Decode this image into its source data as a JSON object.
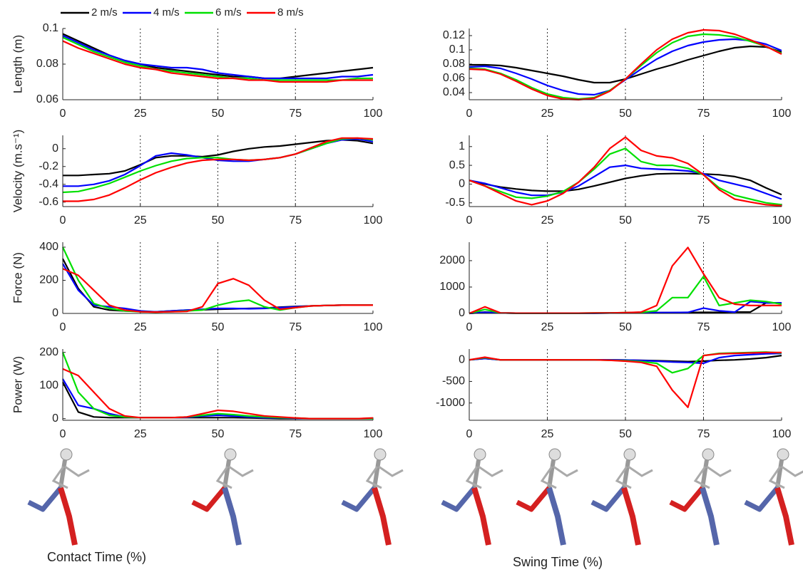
{
  "chart_data": [
    {
      "type": "line",
      "ylabel": "Length (m)",
      "x": [
        0,
        5,
        10,
        15,
        20,
        25,
        30,
        35,
        40,
        45,
        50,
        55,
        60,
        65,
        70,
        75,
        80,
        85,
        90,
        95,
        100
      ],
      "xlim": [
        0,
        100
      ],
      "xticks": [
        0,
        25,
        50,
        75,
        100
      ],
      "ylim": [
        0.06,
        0.1
      ],
      "yticks": [
        0.06,
        0.08,
        0.1
      ],
      "xgrid": true,
      "series": [
        {
          "name": "2 m/s",
          "color": "#000000",
          "values": [
            0.097,
            0.093,
            0.089,
            0.085,
            0.082,
            0.08,
            0.078,
            0.077,
            0.076,
            0.075,
            0.074,
            0.073,
            0.073,
            0.072,
            0.072,
            0.073,
            0.074,
            0.075,
            0.076,
            0.077,
            0.078
          ]
        },
        {
          "name": "4 m/s",
          "color": "#0000ff",
          "values": [
            0.096,
            0.092,
            0.088,
            0.085,
            0.082,
            0.08,
            0.079,
            0.078,
            0.078,
            0.077,
            0.075,
            0.074,
            0.073,
            0.072,
            0.072,
            0.072,
            0.072,
            0.072,
            0.073,
            0.073,
            0.074
          ]
        },
        {
          "name": "6 m/s",
          "color": "#00e000",
          "values": [
            0.095,
            0.091,
            0.087,
            0.084,
            0.081,
            0.079,
            0.077,
            0.076,
            0.075,
            0.074,
            0.073,
            0.072,
            0.072,
            0.071,
            0.071,
            0.071,
            0.071,
            0.071,
            0.071,
            0.072,
            0.072
          ]
        },
        {
          "name": "8 m/s",
          "color": "#ff0000",
          "values": [
            0.093,
            0.089,
            0.086,
            0.083,
            0.08,
            0.078,
            0.077,
            0.075,
            0.074,
            0.073,
            0.072,
            0.072,
            0.071,
            0.071,
            0.07,
            0.07,
            0.07,
            0.07,
            0.071,
            0.071,
            0.071
          ]
        }
      ]
    },
    {
      "type": "line",
      "x": [
        0,
        5,
        10,
        15,
        20,
        25,
        30,
        35,
        40,
        45,
        50,
        55,
        60,
        65,
        70,
        75,
        80,
        85,
        90,
        95,
        100
      ],
      "xlim": [
        0,
        100
      ],
      "xticks": [
        0,
        25,
        50,
        75,
        100
      ],
      "ylim": [
        0.03,
        0.13
      ],
      "yticks": [
        0.04,
        0.06,
        0.08,
        0.1,
        0.12
      ],
      "xgrid": true,
      "series": [
        {
          "color": "#000000",
          "values": [
            0.079,
            0.079,
            0.078,
            0.075,
            0.071,
            0.067,
            0.063,
            0.058,
            0.054,
            0.054,
            0.059,
            0.066,
            0.073,
            0.079,
            0.086,
            0.092,
            0.098,
            0.103,
            0.105,
            0.104,
            0.097
          ]
        },
        {
          "color": "#0000ff",
          "values": [
            0.076,
            0.077,
            0.074,
            0.067,
            0.059,
            0.05,
            0.043,
            0.038,
            0.037,
            0.043,
            0.058,
            0.073,
            0.087,
            0.098,
            0.106,
            0.111,
            0.114,
            0.115,
            0.113,
            0.108,
            0.099
          ]
        },
        {
          "color": "#00e000",
          "values": [
            0.074,
            0.073,
            0.067,
            0.058,
            0.047,
            0.038,
            0.033,
            0.031,
            0.033,
            0.043,
            0.059,
            0.078,
            0.096,
            0.11,
            0.119,
            0.122,
            0.121,
            0.118,
            0.112,
            0.105,
            0.095
          ]
        },
        {
          "color": "#ff0000",
          "values": [
            0.073,
            0.072,
            0.066,
            0.056,
            0.045,
            0.036,
            0.031,
            0.03,
            0.032,
            0.042,
            0.059,
            0.08,
            0.1,
            0.115,
            0.124,
            0.128,
            0.127,
            0.122,
            0.114,
            0.105,
            0.094
          ]
        }
      ]
    },
    {
      "type": "line",
      "ylabel": "Velocity (m.s⁻¹)",
      "x": [
        0,
        5,
        10,
        15,
        20,
        25,
        30,
        35,
        40,
        45,
        50,
        55,
        60,
        65,
        70,
        75,
        80,
        85,
        90,
        95,
        100
      ],
      "xlim": [
        0,
        100
      ],
      "xticks": [
        0,
        25,
        50,
        75,
        100
      ],
      "ylim": [
        -0.65,
        0.15
      ],
      "yticks": [
        -0.6,
        -0.4,
        -0.2,
        0
      ],
      "xgrid": true,
      "series": [
        {
          "color": "#000000",
          "values": [
            -0.3,
            -0.3,
            -0.29,
            -0.28,
            -0.25,
            -0.18,
            -0.1,
            -0.08,
            -0.08,
            -0.09,
            -0.07,
            -0.03,
            0.0,
            0.02,
            0.03,
            0.05,
            0.07,
            0.09,
            0.1,
            0.09,
            0.06
          ]
        },
        {
          "color": "#0000ff",
          "values": [
            -0.42,
            -0.42,
            -0.4,
            -0.36,
            -0.29,
            -0.19,
            -0.08,
            -0.05,
            -0.07,
            -0.1,
            -0.13,
            -0.14,
            -0.14,
            -0.12,
            -0.1,
            -0.06,
            0.0,
            0.06,
            0.1,
            0.11,
            0.08
          ]
        },
        {
          "color": "#00e000",
          "values": [
            -0.49,
            -0.48,
            -0.44,
            -0.39,
            -0.32,
            -0.25,
            -0.19,
            -0.14,
            -0.11,
            -0.1,
            -0.1,
            -0.12,
            -0.13,
            -0.12,
            -0.1,
            -0.06,
            0.0,
            0.06,
            0.11,
            0.12,
            0.1
          ]
        },
        {
          "color": "#ff0000",
          "values": [
            -0.59,
            -0.59,
            -0.57,
            -0.52,
            -0.44,
            -0.35,
            -0.27,
            -0.21,
            -0.16,
            -0.13,
            -0.12,
            -0.12,
            -0.13,
            -0.12,
            -0.1,
            -0.06,
            0.01,
            0.08,
            0.12,
            0.12,
            0.11
          ]
        }
      ]
    },
    {
      "type": "line",
      "x": [
        0,
        5,
        10,
        15,
        20,
        25,
        30,
        35,
        40,
        45,
        50,
        55,
        60,
        65,
        70,
        75,
        80,
        85,
        90,
        95,
        100
      ],
      "xlim": [
        0,
        100
      ],
      "xticks": [
        0,
        25,
        50,
        75,
        100
      ],
      "ylim": [
        -0.6,
        1.3
      ],
      "yticks": [
        -0.5,
        0,
        0.5,
        1
      ],
      "xgrid": true,
      "series": [
        {
          "color": "#000000",
          "values": [
            0.1,
            0.0,
            -0.08,
            -0.13,
            -0.17,
            -0.19,
            -0.19,
            -0.14,
            -0.05,
            0.05,
            0.15,
            0.22,
            0.27,
            0.28,
            0.28,
            0.27,
            0.25,
            0.2,
            0.1,
            -0.1,
            -0.28
          ]
        },
        {
          "color": "#0000ff",
          "values": [
            0.1,
            0.02,
            -0.1,
            -0.22,
            -0.3,
            -0.3,
            -0.22,
            -0.05,
            0.2,
            0.45,
            0.5,
            0.42,
            0.4,
            0.38,
            0.35,
            0.28,
            0.1,
            0.0,
            -0.1,
            -0.25,
            -0.4
          ]
        },
        {
          "color": "#00e000",
          "values": [
            0.1,
            -0.05,
            -0.2,
            -0.35,
            -0.38,
            -0.32,
            -0.2,
            0.05,
            0.4,
            0.8,
            0.95,
            0.6,
            0.5,
            0.5,
            0.42,
            0.25,
            -0.1,
            -0.3,
            -0.4,
            -0.5,
            -0.55
          ]
        },
        {
          "color": "#ff0000",
          "values": [
            0.1,
            -0.05,
            -0.25,
            -0.45,
            -0.55,
            -0.45,
            -0.25,
            0.05,
            0.45,
            0.95,
            1.25,
            0.9,
            0.75,
            0.7,
            0.55,
            0.25,
            -0.15,
            -0.4,
            -0.48,
            -0.55,
            -0.58
          ]
        }
      ]
    },
    {
      "type": "line",
      "ylabel": "Force (N)",
      "x": [
        0,
        5,
        10,
        15,
        20,
        25,
        30,
        35,
        40,
        45,
        50,
        55,
        60,
        65,
        70,
        75,
        80,
        85,
        90,
        95,
        100
      ],
      "xlim": [
        0,
        100
      ],
      "xticks": [
        0,
        25,
        50,
        75,
        100
      ],
      "ylim": [
        0,
        430
      ],
      "yticks": [
        0,
        200,
        400
      ],
      "xgrid": true,
      "series": [
        {
          "color": "#000000",
          "values": [
            330,
            150,
            40,
            20,
            15,
            12,
            10,
            15,
            20,
            22,
            25,
            27,
            30,
            32,
            38,
            42,
            45,
            48,
            50,
            50,
            50
          ]
        },
        {
          "color": "#0000ff",
          "values": [
            300,
            140,
            50,
            40,
            30,
            15,
            10,
            15,
            20,
            25,
            30,
            30,
            28,
            30,
            35,
            40,
            45,
            48,
            50,
            50,
            50
          ]
        },
        {
          "color": "#00e000",
          "values": [
            400,
            200,
            60,
            30,
            15,
            10,
            8,
            10,
            15,
            20,
            50,
            70,
            80,
            40,
            20,
            35,
            45,
            48,
            50,
            50,
            50
          ]
        },
        {
          "color": "#ff0000",
          "values": [
            270,
            230,
            140,
            50,
            20,
            10,
            8,
            10,
            12,
            40,
            180,
            210,
            170,
            80,
            25,
            35,
            45,
            48,
            50,
            50,
            50
          ]
        }
      ]
    },
    {
      "type": "line",
      "x": [
        0,
        5,
        10,
        15,
        20,
        25,
        30,
        35,
        40,
        45,
        50,
        55,
        60,
        65,
        70,
        75,
        80,
        85,
        90,
        95,
        100
      ],
      "xlim": [
        0,
        100
      ],
      "xticks": [
        0,
        25,
        50,
        75,
        100
      ],
      "ylim": [
        0,
        2700
      ],
      "yticks": [
        0,
        1000,
        2000
      ],
      "xgrid": true,
      "series": [
        {
          "color": "#000000",
          "values": [
            0,
            50,
            20,
            10,
            10,
            10,
            10,
            10,
            10,
            15,
            20,
            25,
            30,
            30,
            35,
            40,
            40,
            50,
            50,
            400,
            400
          ]
        },
        {
          "color": "#0000ff",
          "values": [
            0,
            40,
            20,
            10,
            10,
            10,
            10,
            10,
            10,
            15,
            20,
            25,
            30,
            35,
            40,
            200,
            100,
            50,
            450,
            400,
            400
          ]
        },
        {
          "color": "#00e000",
          "values": [
            0,
            150,
            20,
            10,
            10,
            10,
            10,
            10,
            15,
            20,
            30,
            40,
            100,
            600,
            600,
            1400,
            300,
            400,
            500,
            450,
            350
          ]
        },
        {
          "color": "#ff0000",
          "values": [
            0,
            250,
            20,
            10,
            10,
            10,
            10,
            10,
            15,
            20,
            30,
            50,
            300,
            1800,
            2500,
            1500,
            600,
            350,
            300,
            300,
            300
          ]
        }
      ]
    },
    {
      "type": "line",
      "ylabel": "Power (W)",
      "x": [
        0,
        5,
        10,
        15,
        20,
        25,
        30,
        35,
        40,
        45,
        50,
        55,
        60,
        65,
        70,
        75,
        80,
        85,
        90,
        95,
        100
      ],
      "xlim": [
        0,
        100
      ],
      "xticks": [
        0,
        25,
        50,
        75,
        100
      ],
      "ylim": [
        -5,
        210
      ],
      "yticks": [
        0,
        100,
        200
      ],
      "xgrid": true,
      "xlabel": "Contact Time (%)",
      "series": [
        {
          "color": "#000000",
          "values": [
            110,
            20,
            5,
            3,
            3,
            3,
            3,
            3,
            3,
            3,
            3,
            3,
            2,
            1,
            0,
            0,
            0,
            0,
            0,
            0,
            0
          ]
        },
        {
          "color": "#0000ff",
          "values": [
            120,
            40,
            30,
            15,
            5,
            3,
            3,
            3,
            4,
            8,
            10,
            8,
            5,
            3,
            2,
            1,
            0,
            0,
            0,
            0,
            0
          ]
        },
        {
          "color": "#00e000",
          "values": [
            200,
            80,
            30,
            10,
            5,
            3,
            3,
            3,
            5,
            10,
            15,
            12,
            8,
            5,
            3,
            2,
            0,
            0,
            0,
            0,
            0
          ]
        },
        {
          "color": "#ff0000",
          "values": [
            150,
            130,
            80,
            30,
            8,
            3,
            3,
            3,
            5,
            15,
            25,
            22,
            15,
            8,
            5,
            2,
            0,
            0,
            0,
            0,
            2
          ]
        }
      ]
    },
    {
      "type": "line",
      "x": [
        0,
        5,
        10,
        15,
        20,
        25,
        30,
        35,
        40,
        45,
        50,
        55,
        60,
        65,
        70,
        75,
        80,
        85,
        90,
        95,
        100
      ],
      "xlim": [
        0,
        100
      ],
      "xticks": [
        0,
        25,
        50,
        75,
        100
      ],
      "ylim": [
        -1400,
        250
      ],
      "yticks": [
        -1000,
        -500,
        0
      ],
      "xgrid": true,
      "xlabel": "Swing Time (%)",
      "series": [
        {
          "color": "#000000",
          "values": [
            0,
            30,
            0,
            0,
            0,
            0,
            0,
            0,
            0,
            0,
            -5,
            -10,
            -20,
            -30,
            -40,
            -30,
            -10,
            0,
            20,
            50,
            100
          ]
        },
        {
          "color": "#0000ff",
          "values": [
            0,
            30,
            0,
            0,
            0,
            0,
            0,
            0,
            0,
            0,
            -5,
            -15,
            -30,
            -50,
            -60,
            -80,
            50,
            100,
            120,
            140,
            150
          ]
        },
        {
          "color": "#00e000",
          "values": [
            0,
            50,
            0,
            0,
            0,
            0,
            0,
            0,
            0,
            -10,
            -20,
            -40,
            -80,
            -300,
            -200,
            100,
            150,
            160,
            170,
            180,
            160
          ]
        },
        {
          "color": "#ff0000",
          "values": [
            0,
            60,
            0,
            0,
            0,
            0,
            0,
            0,
            0,
            -10,
            -30,
            -60,
            -150,
            -700,
            -1100,
            100,
            140,
            150,
            160,
            170,
            170
          ]
        }
      ]
    }
  ]
}
